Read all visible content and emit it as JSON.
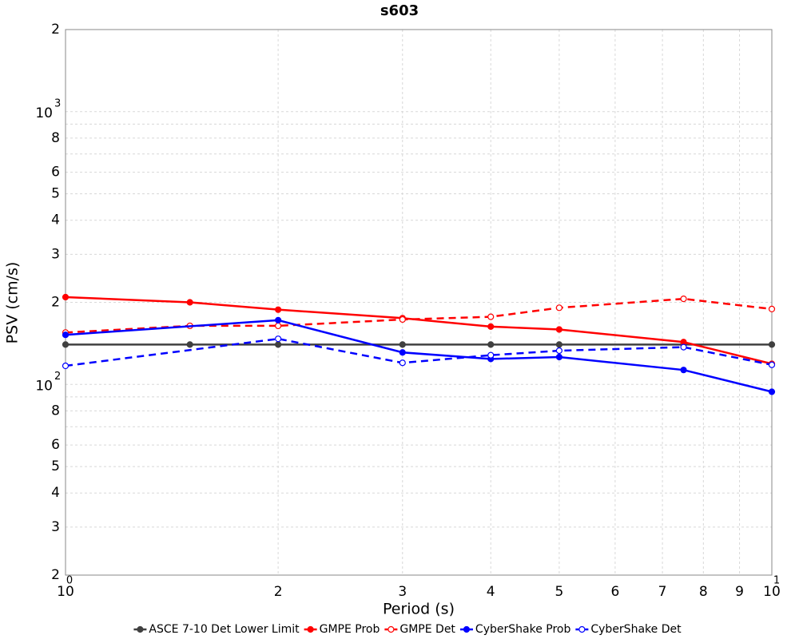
{
  "chart_data": {
    "type": "line",
    "title": "s603",
    "x_label": "Period (s)",
    "y_label": "PSV (cm/s)",
    "log_x": true,
    "log_y": true,
    "grid": true,
    "legend": "bottom",
    "xlim": [
      1,
      10
    ],
    "ylim": [
      20,
      2000
    ],
    "xticks": [
      {
        "value": 1,
        "label": "10",
        "exponent": "0"
      },
      2,
      3,
      4,
      5,
      6,
      7,
      8,
      9,
      {
        "value": 10,
        "label": "10",
        "exponent": "1"
      }
    ],
    "yticks": [
      2,
      3,
      4,
      5,
      6,
      8,
      {
        "value": 100,
        "label": "10",
        "exponent": "2"
      },
      2,
      3,
      4,
      5,
      6,
      8,
      {
        "value": 1000,
        "label": "10",
        "exponent": "3"
      },
      2
    ],
    "ytick_values": [
      20,
      30,
      40,
      50,
      60,
      80,
      100,
      200,
      300,
      400,
      500,
      600,
      800,
      1000,
      2000
    ],
    "y_minor_ticks": [
      70,
      90,
      700,
      900
    ],
    "series": [
      {
        "name": "ASCE 7-10 Det Lower Limit",
        "color": "#404040",
        "dashed": false,
        "marker": "filled",
        "x": [
          1,
          1.5,
          2,
          3,
          4,
          5,
          7.5,
          10
        ],
        "values": [
          140,
          140,
          140,
          140,
          140,
          140,
          140,
          140
        ]
      },
      {
        "name": "GMPE Prob",
        "color": "#ff0000",
        "dashed": false,
        "marker": "filled",
        "x": [
          1,
          1.5,
          2,
          3,
          4,
          5,
          7.5,
          10
        ],
        "values": [
          209,
          200,
          188,
          175,
          163,
          159,
          143,
          119
        ]
      },
      {
        "name": "GMPE Det",
        "color": "#ff0000",
        "dashed": true,
        "marker": "open",
        "x": [
          1,
          1.5,
          2,
          3,
          4,
          5,
          7.5,
          10
        ],
        "values": [
          155,
          164,
          164,
          173,
          177,
          191,
          206,
          189
        ]
      },
      {
        "name": "CyberShake Prob",
        "color": "#0000ff",
        "dashed": false,
        "marker": "filled",
        "x": [
          1,
          2,
          3,
          4,
          5,
          7.5,
          10
        ],
        "values": [
          152,
          172,
          131,
          124,
          126,
          113,
          94
        ]
      },
      {
        "name": "CyberShake Det",
        "color": "#0000ff",
        "dashed": true,
        "marker": "open",
        "x": [
          1,
          2,
          3,
          4,
          5,
          7.5,
          10
        ],
        "values": [
          117,
          147,
          120,
          128,
          133,
          137,
          118
        ]
      }
    ]
  }
}
